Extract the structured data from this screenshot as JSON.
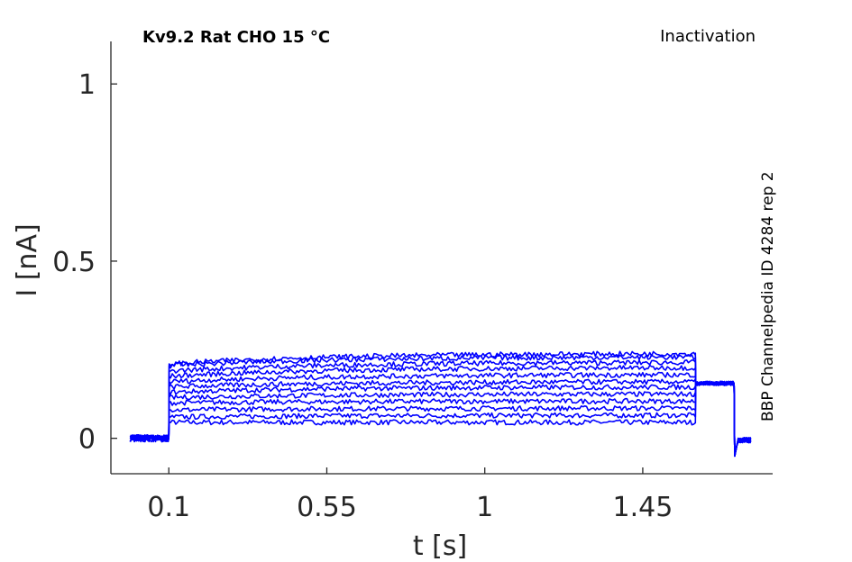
{
  "chart_data": {
    "type": "line",
    "title": "Kv9.2  Rat  CHO  15 °C",
    "protocol": "Inactivation",
    "source": "BBP Channelpedia ID 4284 rep 2",
    "xlabel": "t [s]",
    "ylabel": "I [nA]",
    "xlim": [
      -0.065,
      1.82
    ],
    "ylim": [
      -0.1,
      1.12
    ],
    "xticks": [
      0.1,
      0.55,
      1,
      1.45
    ],
    "xtick_labels": [
      "0.1",
      "0.55",
      "1",
      "1.45"
    ],
    "yticks": [
      0,
      0.5,
      1
    ],
    "ytick_labels": [
      "0",
      "0.5",
      "1"
    ],
    "grid": false,
    "color": "#0000ff",
    "protocol_times": {
      "baseline_start": -0.01,
      "pulse_on": 0.1,
      "pulse_off": 1.6,
      "tail_off": 1.71,
      "end": 1.76
    },
    "tail_current": 0.155,
    "series": [
      {
        "onset": 0.045,
        "end": 0.045
      },
      {
        "onset": 0.06,
        "end": 0.065
      },
      {
        "onset": 0.08,
        "end": 0.085
      },
      {
        "onset": 0.1,
        "end": 0.105
      },
      {
        "onset": 0.115,
        "end": 0.125
      },
      {
        "onset": 0.13,
        "end": 0.145
      },
      {
        "onset": 0.145,
        "end": 0.16
      },
      {
        "onset": 0.16,
        "end": 0.18
      },
      {
        "onset": 0.175,
        "end": 0.2
      },
      {
        "onset": 0.19,
        "end": 0.215
      },
      {
        "onset": 0.205,
        "end": 0.23
      },
      {
        "onset": 0.21,
        "end": 0.24
      }
    ]
  }
}
